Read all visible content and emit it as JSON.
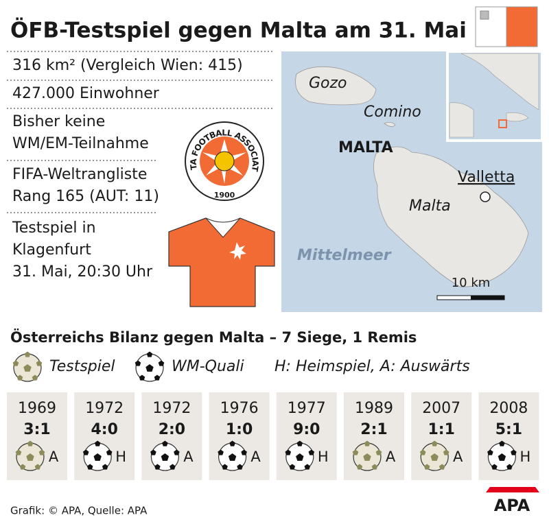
{
  "title": "ÖFB-Testspiel gegen Malta am 31. Mai",
  "facts": [
    [
      "316 km² (Vergleich Wien: 415)"
    ],
    [
      "427.000 Einwohner"
    ],
    [
      "Bisher keine",
      "WM/EM-Teilnahme"
    ],
    [
      "FIFA-Weltrangliste",
      "Rang 165 (AUT: 11)"
    ],
    [
      "Testspiel in",
      "Klagenfurt",
      "31. Mai, 20:30 Uhr"
    ]
  ],
  "logo": {
    "name": "MALTA FOOTBALL ASSOCIATION",
    "year": "1900"
  },
  "map": {
    "gozo": "Gozo",
    "comino": "Comino",
    "country": "MALTA",
    "capital": "Valletta",
    "island": "Malta",
    "sea": "Mittelmeer",
    "scale": "10 km"
  },
  "record": {
    "title": "Österreichs Bilanz gegen Malta – 7 Siege, 1 Remis",
    "legend": {
      "friendly": "Testspiel",
      "qualifier": "WM-Quali",
      "venue": "H: Heimspiel, A: Auswärts"
    },
    "matches": [
      {
        "year": "1969",
        "score": "3:1",
        "qualifier": false,
        "venue": "A"
      },
      {
        "year": "1972",
        "score": "4:0",
        "qualifier": true,
        "venue": "H"
      },
      {
        "year": "1972",
        "score": "2:0",
        "qualifier": true,
        "venue": "A"
      },
      {
        "year": "1976",
        "score": "1:0",
        "qualifier": true,
        "venue": "A"
      },
      {
        "year": "1977",
        "score": "9:0",
        "qualifier": true,
        "venue": "H"
      },
      {
        "year": "1989",
        "score": "2:1",
        "qualifier": false,
        "venue": "A"
      },
      {
        "year": "2007",
        "score": "1:1",
        "qualifier": false,
        "venue": "A"
      },
      {
        "year": "2008",
        "score": "5:1",
        "qualifier": true,
        "venue": "H"
      }
    ]
  },
  "footer": {
    "source": "Grafik: © APA, Quelle: APA",
    "logo": "APA"
  }
}
